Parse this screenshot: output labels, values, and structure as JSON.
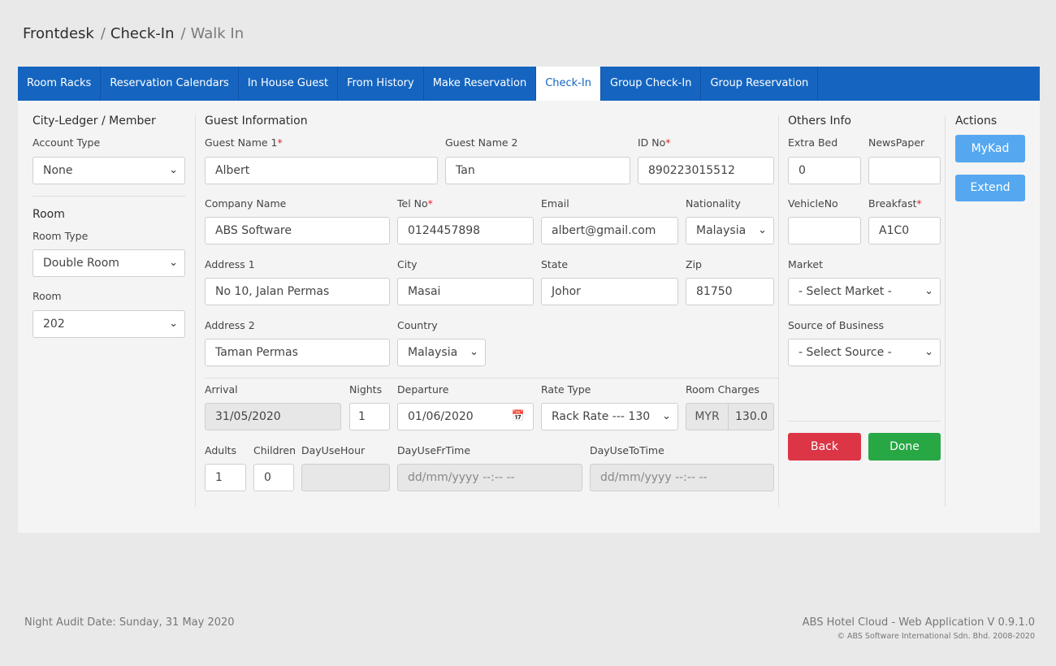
{
  "breadcrumb": {
    "items": [
      "Frontdesk",
      "Check-In",
      "Walk In"
    ]
  },
  "tabs": [
    {
      "label": "Room Racks"
    },
    {
      "label": "Reservation Calendars"
    },
    {
      "label": "In House Guest"
    },
    {
      "label": "From History"
    },
    {
      "label": "Make Reservation"
    },
    {
      "label": "Check-In",
      "active": true
    },
    {
      "label": "Group Check-In"
    },
    {
      "label": "Group Reservation"
    }
  ],
  "left": {
    "title": "City-Ledger / Member",
    "account_type_label": "Account Type",
    "account_type_value": "None",
    "room_title": "Room",
    "room_type_label": "Room Type",
    "room_type_value": "Double Room",
    "room_label": "Room",
    "room_value": "202"
  },
  "guest": {
    "title": "Guest Information",
    "guest_name1_label": "Guest Name 1",
    "guest_name1_value": "Albert",
    "guest_name2_label": "Guest Name 2",
    "guest_name2_value": "Tan",
    "id_label": "ID No",
    "id_value": "890223015512",
    "company_label": "Company Name",
    "company_value": "ABS Software",
    "tel_label": "Tel No",
    "tel_value": "0124457898",
    "email_label": "Email",
    "email_value": "albert@gmail.com",
    "nationality_label": "Nationality",
    "nationality_value": "Malaysia",
    "address1_label": "Address 1",
    "address1_value": "No 10, Jalan Permas",
    "city_label": "City",
    "city_value": "Masai",
    "state_label": "State",
    "state_value": "Johor",
    "zip_label": "Zip",
    "zip_value": "81750",
    "address2_label": "Address 2",
    "address2_value": "Taman Permas",
    "country_label": "Country",
    "country_value": "Malaysia"
  },
  "stay": {
    "arrival_label": "Arrival",
    "arrival_value": "31/05/2020",
    "nights_label": "Nights",
    "nights_value": "1",
    "departure_label": "Departure",
    "departure_value": "01/06/2020",
    "rate_type_label": "Rate Type",
    "rate_type_value": "Rack Rate --- 130",
    "room_charges_label": "Room Charges",
    "currency": "MYR",
    "room_charges_value": "130.0",
    "adults_label": "Adults",
    "adults_value": "1",
    "children_label": "Children",
    "children_value": "0",
    "dayusehour_label": "DayUseHour",
    "dayusefr_label": "DayUseFrTime",
    "dayusefr_placeholder": "dd/mm/yyyy --:-- --",
    "dayuseto_label": "DayUseToTime",
    "dayuseto_placeholder": "dd/mm/yyyy --:-- --"
  },
  "others": {
    "title": "Others Info",
    "extra_bed_label": "Extra Bed",
    "extra_bed_value": "0",
    "newspaper_label": "NewsPaper",
    "vehicle_label": "VehicleNo",
    "breakfast_label": "Breakfast",
    "breakfast_value": "A1C0",
    "market_label": "Market",
    "market_value": "- Select Market -",
    "source_label": "Source of Business",
    "source_value": "- Select Source -",
    "back_label": "Back",
    "done_label": "Done"
  },
  "actions": {
    "title": "Actions",
    "mykad_label": "MyKad",
    "extend_label": "Extend"
  },
  "footer": {
    "audit": "Night Audit Date: Sunday, 31 May 2020",
    "app": "ABS Hotel Cloud - Web Application V 0.9.1.0",
    "copyright": "© ABS Software International Sdn. Bhd. 2008-2020"
  },
  "colors": {
    "tab_bar": "#1565c0",
    "btn_blue": "#55a8f0",
    "btn_red": "#dc3545",
    "btn_green": "#28a745"
  }
}
